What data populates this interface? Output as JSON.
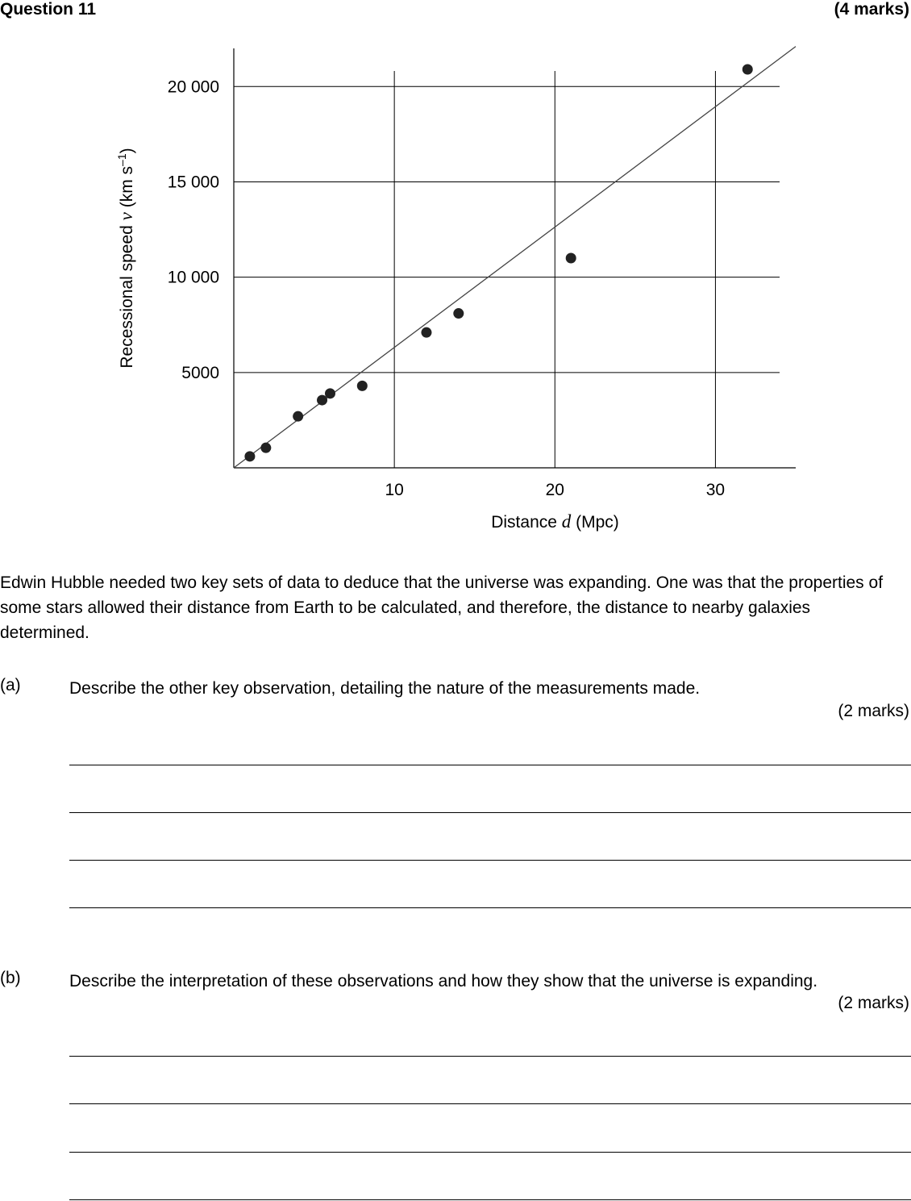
{
  "header": {
    "title": "Question 11",
    "marks": "(4 marks)"
  },
  "chart_data": {
    "type": "scatter",
    "title": "",
    "xlabel_parts": [
      "Distance ",
      "d",
      " (Mpc)"
    ],
    "ylabel_parts": [
      "Recessional speed ",
      "v",
      " (km s",
      "–1",
      ")"
    ],
    "xlim": [
      0,
      35
    ],
    "ylim": [
      0,
      22000
    ],
    "x_ticks": [
      10,
      20,
      30
    ],
    "x_tick_labels": [
      "10",
      "20",
      "30"
    ],
    "y_ticks": [
      5000,
      10000,
      15000,
      20000
    ],
    "y_tick_labels": [
      "5000",
      "10 000",
      "15 000",
      "20 000"
    ],
    "grid": true,
    "series": [
      {
        "points": [
          {
            "x": 1,
            "y": 600
          },
          {
            "x": 2,
            "y": 1050
          },
          {
            "x": 4,
            "y": 2700
          },
          {
            "x": 5.5,
            "y": 3550
          },
          {
            "x": 6,
            "y": 3900
          },
          {
            "x": 8,
            "y": 4300
          },
          {
            "x": 12,
            "y": 7100
          },
          {
            "x": 14,
            "y": 8100
          },
          {
            "x": 21,
            "y": 11000
          },
          {
            "x": 32,
            "y": 20900
          }
        ]
      }
    ],
    "fit_line": {
      "x": [
        0,
        35
      ],
      "y": [
        0,
        22100
      ]
    }
  },
  "intro": "Edwin Hubble needed two key sets of data to deduce that the universe was expanding. One was that the properties of some stars allowed their distance from Earth to be calculated, and therefore, the distance to nearby galaxies determined.",
  "part_a": {
    "label": "(a)",
    "text": "Describe the other key observation, detailing the nature of the measurements made.",
    "marks": "(2 marks)"
  },
  "part_b": {
    "label": "(b)",
    "text": "Describe the interpretation of these observations and how they show that the universe is expanding.",
    "marks": "(2 marks)"
  }
}
